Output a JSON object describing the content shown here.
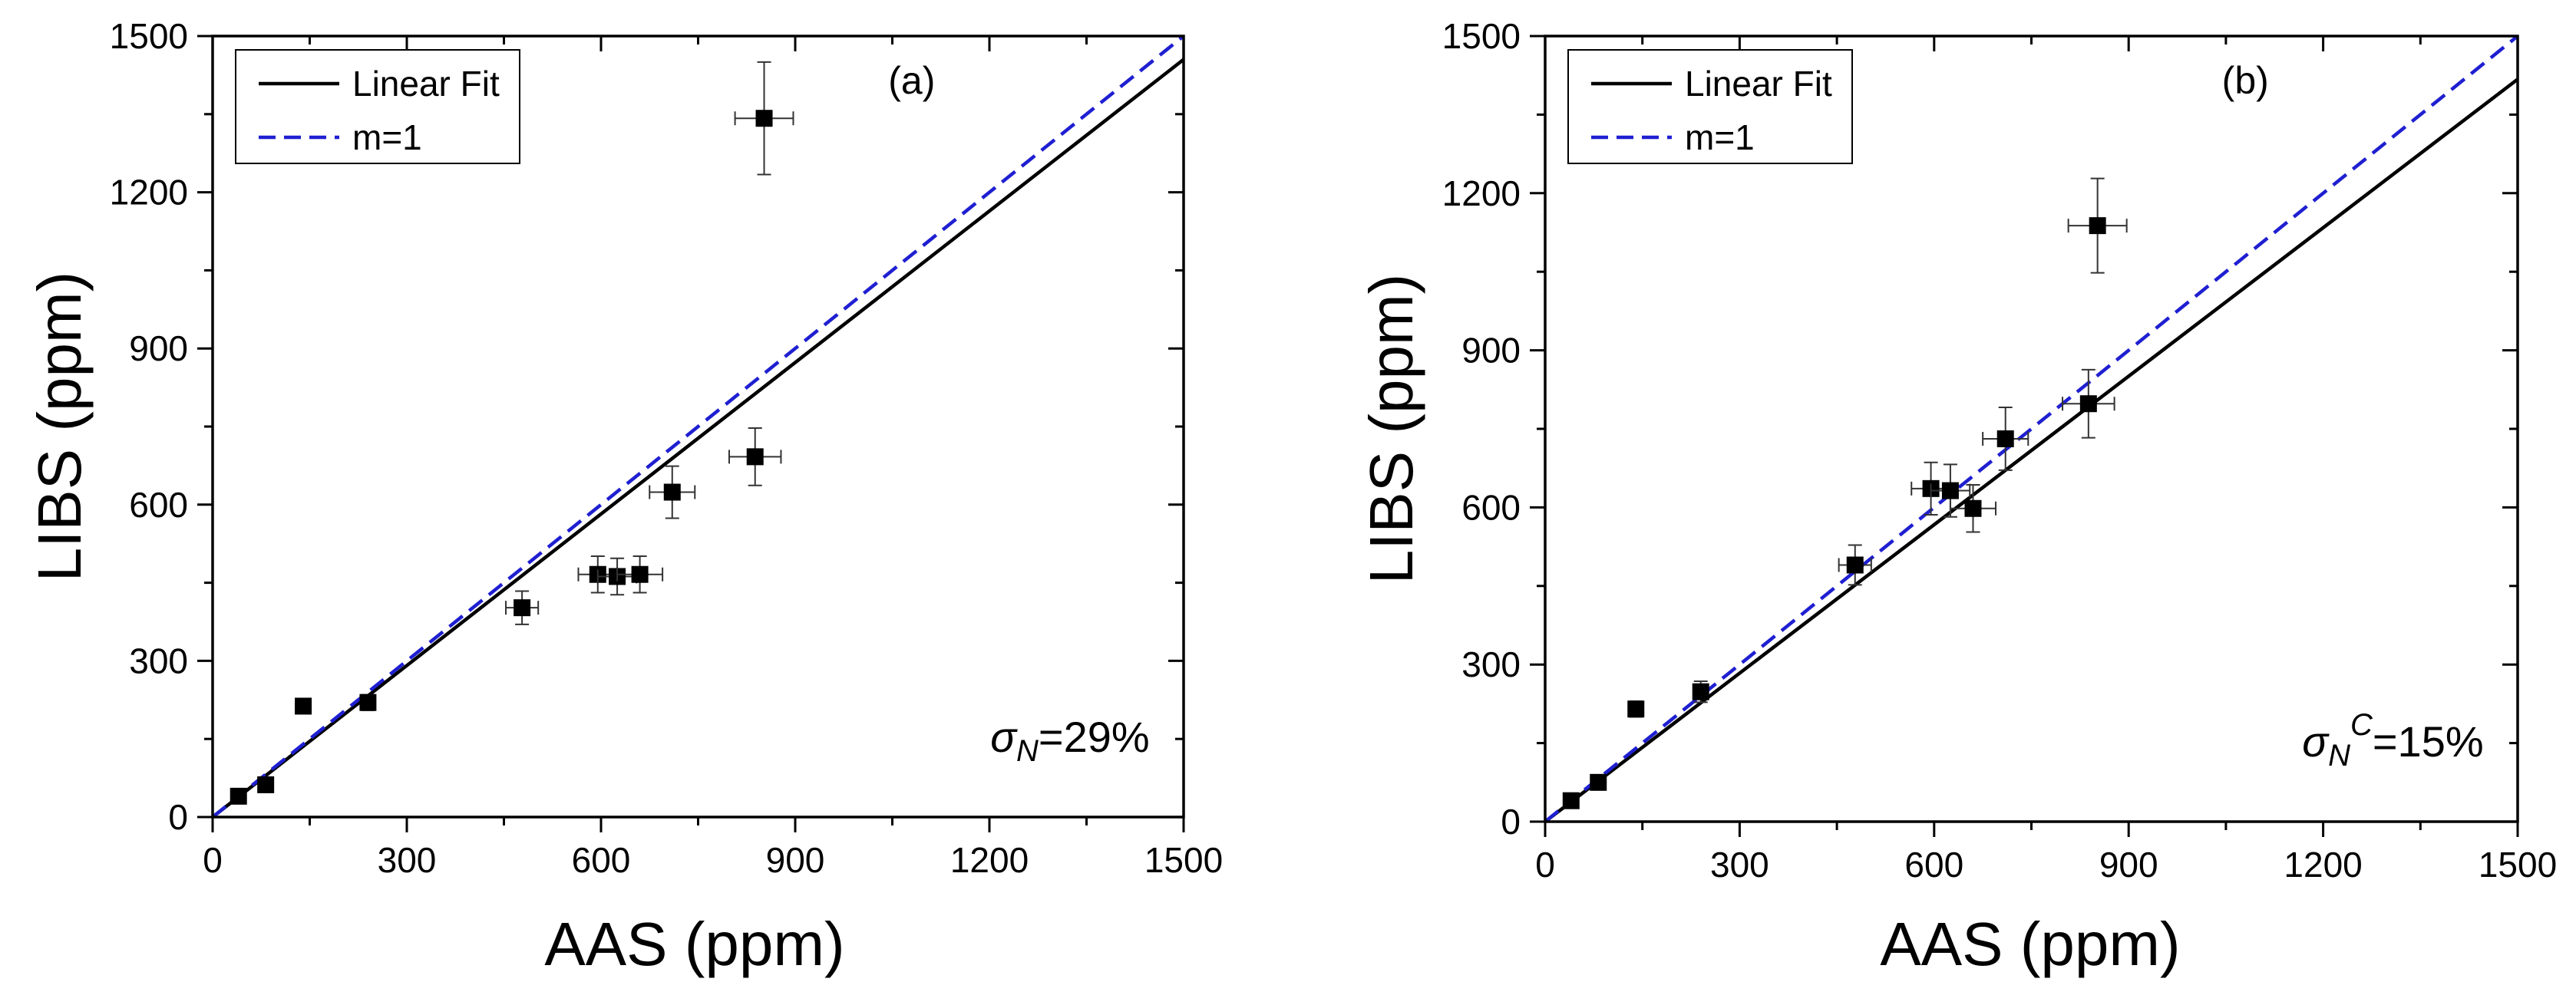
{
  "chart_data": [
    {
      "type": "scatter",
      "panel_label": "(a)",
      "xlabel": "AAS (ppm)",
      "ylabel": "LIBS (ppm)",
      "xlim": [
        0,
        1500
      ],
      "ylim": [
        0,
        1500
      ],
      "xticks": [
        0,
        300,
        600,
        900,
        1200,
        1500
      ],
      "yticks": [
        0,
        300,
        600,
        900,
        1200,
        1500
      ],
      "xtick_labels": [
        "0",
        "300",
        "600",
        "900",
        "1200",
        "1500"
      ],
      "ytick_labels": [
        "0",
        "300",
        "600",
        "900",
        "1200",
        "1500"
      ],
      "legend": {
        "position": "top-left",
        "entries": [
          "Linear Fit",
          "m=1"
        ]
      },
      "annotation": {
        "symbol": "σ",
        "sub": "N",
        "sup": "",
        "text": "=29%"
      },
      "series": [
        {
          "name": "data",
          "points": [
            {
              "x": 40,
              "y": 40,
              "xerr": 0,
              "yerr": 0
            },
            {
              "x": 82,
              "y": 62,
              "xerr": 0,
              "yerr": 0
            },
            {
              "x": 140,
              "y": 213,
              "xerr": 0,
              "yerr": 0
            },
            {
              "x": 240,
              "y": 220,
              "xerr": 0,
              "yerr": 15
            },
            {
              "x": 478,
              "y": 402,
              "xerr": 25,
              "yerr": 32
            },
            {
              "x": 595,
              "y": 466,
              "xerr": 30,
              "yerr": 35
            },
            {
              "x": 625,
              "y": 462,
              "xerr": 30,
              "yerr": 35
            },
            {
              "x": 660,
              "y": 466,
              "xerr": 35,
              "yerr": 35
            },
            {
              "x": 710,
              "y": 624,
              "xerr": 35,
              "yerr": 50
            },
            {
              "x": 838,
              "y": 692,
              "xerr": 40,
              "yerr": 55
            },
            {
              "x": 852,
              "y": 1342,
              "xerr": 45,
              "yerr": 108
            }
          ]
        },
        {
          "name": "Linear Fit",
          "slope": 0.97,
          "intercept": 0,
          "color": "#000000"
        },
        {
          "name": "m=1",
          "slope": 1.0,
          "intercept": 0,
          "color": "#1f1fd1"
        }
      ]
    },
    {
      "type": "scatter",
      "panel_label": "(b)",
      "xlabel": "AAS (ppm)",
      "ylabel": "LIBS (ppm)",
      "xlim": [
        0,
        1500
      ],
      "ylim": [
        0,
        1500
      ],
      "xticks": [
        0,
        300,
        600,
        900,
        1200,
        1500
      ],
      "yticks": [
        0,
        300,
        600,
        900,
        1200,
        1500
      ],
      "xtick_labels": [
        "0",
        "300",
        "600",
        "900",
        "1200",
        "1500"
      ],
      "ytick_labels": [
        "0",
        "300",
        "600",
        "900",
        "1200",
        "1500"
      ],
      "legend": {
        "position": "top-left",
        "entries": [
          "Linear Fit",
          "m=1"
        ]
      },
      "annotation": {
        "symbol": "σ",
        "sub": "N",
        "sup": "C",
        "text": "=15%"
      },
      "series": [
        {
          "name": "data",
          "points": [
            {
              "x": 40,
              "y": 40,
              "xerr": 0,
              "yerr": 0
            },
            {
              "x": 82,
              "y": 75,
              "xerr": 0,
              "yerr": 0
            },
            {
              "x": 140,
              "y": 215,
              "xerr": 0,
              "yerr": 15
            },
            {
              "x": 240,
              "y": 248,
              "xerr": 0,
              "yerr": 20
            },
            {
              "x": 478,
              "y": 490,
              "xerr": 25,
              "yerr": 38
            },
            {
              "x": 595,
              "y": 636,
              "xerr": 30,
              "yerr": 50
            },
            {
              "x": 625,
              "y": 632,
              "xerr": 30,
              "yerr": 50
            },
            {
              "x": 660,
              "y": 598,
              "xerr": 35,
              "yerr": 45
            },
            {
              "x": 710,
              "y": 731,
              "xerr": 35,
              "yerr": 60
            },
            {
              "x": 838,
              "y": 798,
              "xerr": 40,
              "yerr": 65
            },
            {
              "x": 852,
              "y": 1138,
              "xerr": 45,
              "yerr": 90
            }
          ]
        },
        {
          "name": "Linear Fit",
          "slope": 0.945,
          "intercept": 0,
          "color": "#000000"
        },
        {
          "name": "m=1",
          "slope": 1.0,
          "intercept": 0,
          "color": "#1f1fd1"
        }
      ]
    }
  ]
}
